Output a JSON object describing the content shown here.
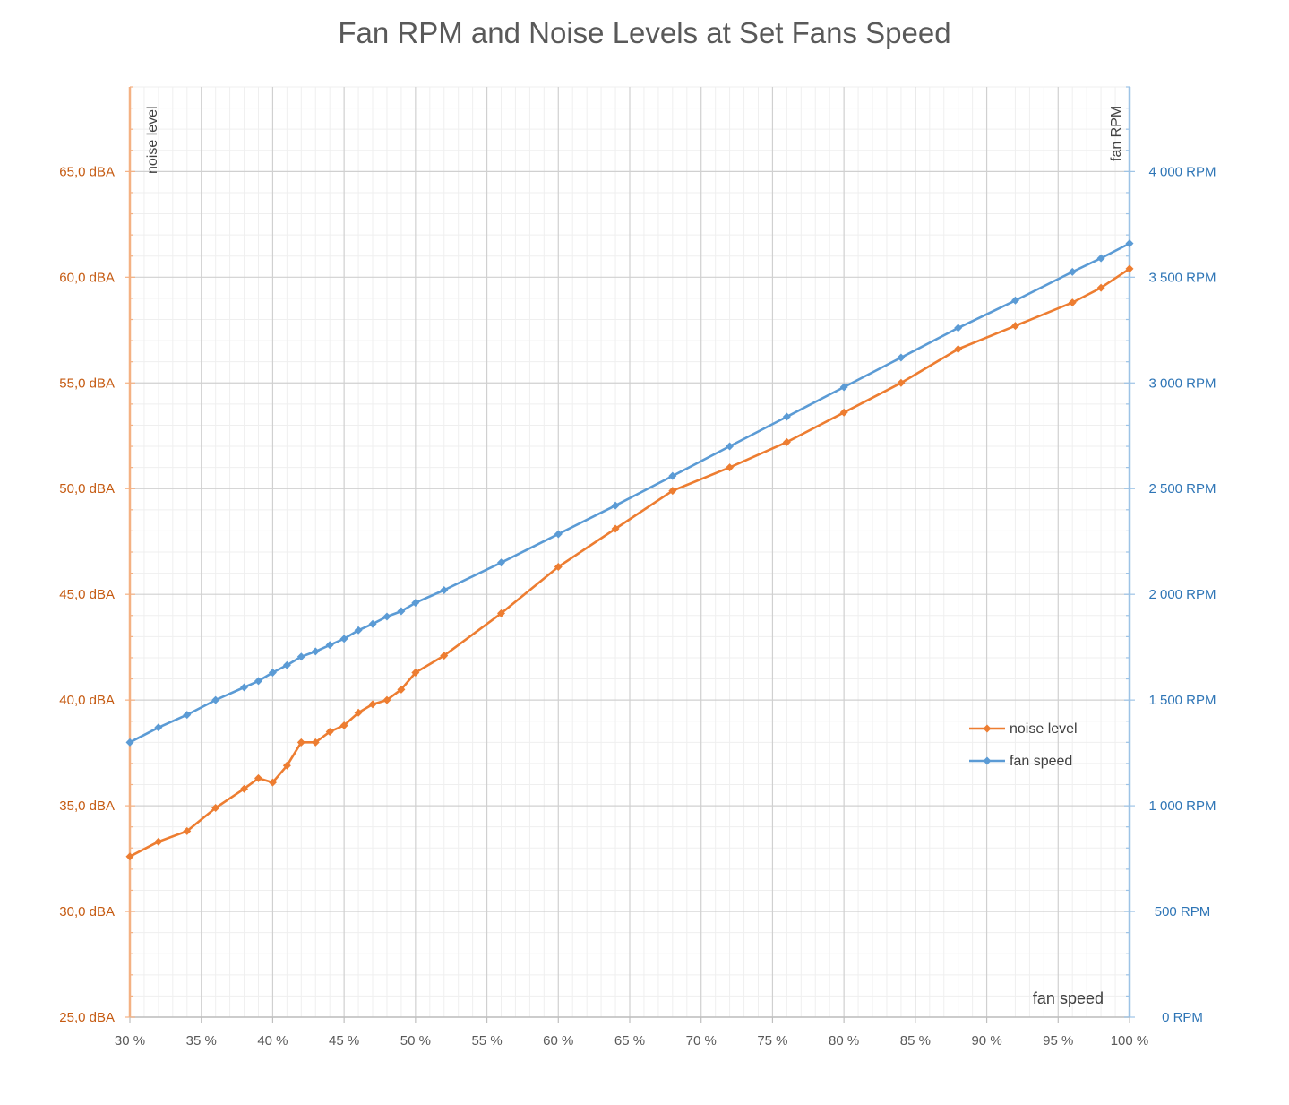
{
  "chart_data": {
    "type": "line",
    "title": "Fan RPM and Noise Levels at Set Fans Speed",
    "xlabel": "fan speed",
    "ylabel_left": "noise level",
    "ylabel_right": "fan RPM",
    "xlim": [
      30,
      100
    ],
    "ylim_left": [
      25,
      69
    ],
    "ylim_right": [
      0,
      4400
    ],
    "x_ticks": [
      30,
      35,
      40,
      45,
      50,
      55,
      60,
      65,
      70,
      75,
      80,
      85,
      90,
      95,
      100
    ],
    "x_tick_labels": [
      "30 %",
      "35 %",
      "40 %",
      "45 %",
      "50 %",
      "55 %",
      "60 %",
      "65 %",
      "70 %",
      "75 %",
      "80 %",
      "85 %",
      "90 %",
      "95 %",
      "100 %"
    ],
    "y_left_ticks": [
      25,
      30,
      35,
      40,
      45,
      50,
      55,
      60,
      65
    ],
    "y_left_tick_labels": [
      "25,0 dBA",
      "30,0 dBA",
      "35,0 dBA",
      "40,0 dBA",
      "45,0 dBA",
      "50,0 dBA",
      "55,0 dBA",
      "60,0 dBA",
      "65,0 dBA"
    ],
    "y_right_ticks": [
      0,
      500,
      1000,
      1500,
      2000,
      2500,
      3000,
      3500,
      4000
    ],
    "y_right_tick_labels": [
      "0 RPM",
      "500 RPM",
      "1 000 RPM",
      "1 500 RPM",
      "2 000 RPM",
      "2 500 RPM",
      "3 000 RPM",
      "3 500 RPM",
      "4 000 RPM"
    ],
    "grid": true,
    "legend_position": "right",
    "series": [
      {
        "name": "noise level",
        "axis": "left",
        "color": "#ED7D31",
        "x": [
          30,
          32,
          34,
          36,
          38,
          39,
          40,
          41,
          42,
          43,
          44,
          45,
          46,
          47,
          48,
          49,
          50,
          52,
          56,
          60,
          64,
          68,
          72,
          76,
          80,
          84,
          88,
          92,
          96,
          98,
          100
        ],
        "values": [
          32.6,
          33.3,
          33.8,
          34.9,
          35.8,
          36.3,
          36.1,
          36.9,
          38.0,
          38.0,
          38.5,
          38.8,
          39.4,
          39.8,
          40.0,
          40.5,
          41.3,
          42.1,
          44.1,
          46.3,
          48.1,
          49.9,
          51.0,
          52.2,
          53.6,
          55.0,
          56.6,
          57.7,
          58.8,
          59.5,
          60.4
        ]
      },
      {
        "name": "fan speed",
        "axis": "right",
        "color": "#5B9BD5",
        "x": [
          30,
          32,
          34,
          36,
          38,
          39,
          40,
          41,
          42,
          43,
          44,
          45,
          46,
          47,
          48,
          49,
          50,
          52,
          56,
          60,
          64,
          68,
          72,
          76,
          80,
          84,
          88,
          92,
          96,
          98,
          100
        ],
        "values": [
          1300,
          1370,
          1430,
          1500,
          1560,
          1590,
          1630,
          1665,
          1705,
          1730,
          1760,
          1790,
          1830,
          1860,
          1895,
          1920,
          1960,
          2020,
          2150,
          2285,
          2420,
          2560,
          2700,
          2840,
          2980,
          3120,
          3260,
          3390,
          3525,
          3590,
          3660
        ]
      }
    ]
  }
}
